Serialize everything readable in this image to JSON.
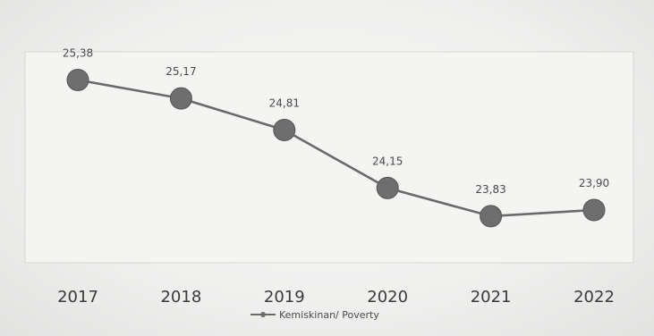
{
  "chart_data": {
    "type": "line",
    "title": "",
    "xlabel": "",
    "ylabel": "",
    "categories": [
      "2017",
      "2018",
      "2019",
      "2020",
      "2021",
      "2022"
    ],
    "series": [
      {
        "name": "Kemiskinan/ Poverty",
        "values": [
          25.38,
          25.17,
          24.81,
          24.15,
          23.83,
          23.9
        ],
        "labels": [
          "25,38",
          "25,17",
          "24,81",
          "24,15",
          "23,83",
          "23,90"
        ],
        "color": "#6a6a6a"
      }
    ],
    "ylim": [
      23.3,
      25.7
    ],
    "grid": false,
    "legend": "bottom-center"
  }
}
